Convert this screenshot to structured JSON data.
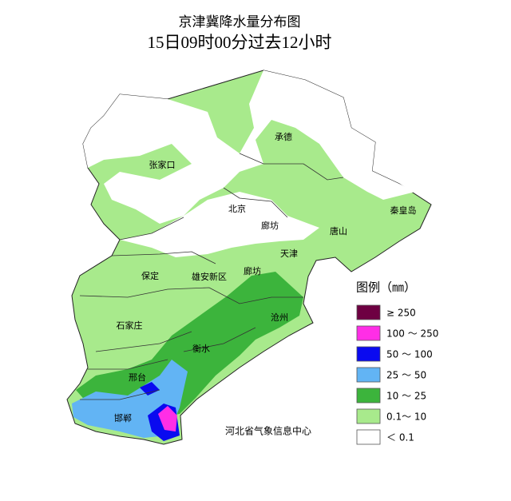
{
  "title": "京津冀降水量分布图",
  "subtitle": "15日09时00分过去12小时",
  "places": [
    {
      "label": "承德"
    },
    {
      "label": "张家口"
    },
    {
      "label": "北京"
    },
    {
      "label": "廊坊"
    },
    {
      "label": "唐山"
    },
    {
      "label": "秦皇岛"
    },
    {
      "label": "天津"
    },
    {
      "label": "保定"
    },
    {
      "label": "雄安新区"
    },
    {
      "label": "廊坊"
    },
    {
      "label": "沧州"
    },
    {
      "label": "石家庄"
    },
    {
      "label": "衡水"
    },
    {
      "label": "邢台"
    },
    {
      "label": "邯郸"
    }
  ],
  "legend": {
    "title": "图例（㎜）",
    "items": [
      {
        "label": "≥ 250",
        "color": "#6e0042"
      },
      {
        "label": "100 ～ 250",
        "color": "#ff2ee6"
      },
      {
        "label": "50 ～ 100",
        "color": "#0a0af0"
      },
      {
        "label": "25 ～ 50",
        "color": "#62b4f4"
      },
      {
        "label": "10 ～ 25",
        "color": "#3cb43c"
      },
      {
        "label": "0.1～ 10",
        "color": "#a8ea8c"
      },
      {
        "label": "＜ 0.1",
        "color": "#ffffff"
      }
    ]
  },
  "source": "河北省气象信息中心"
}
